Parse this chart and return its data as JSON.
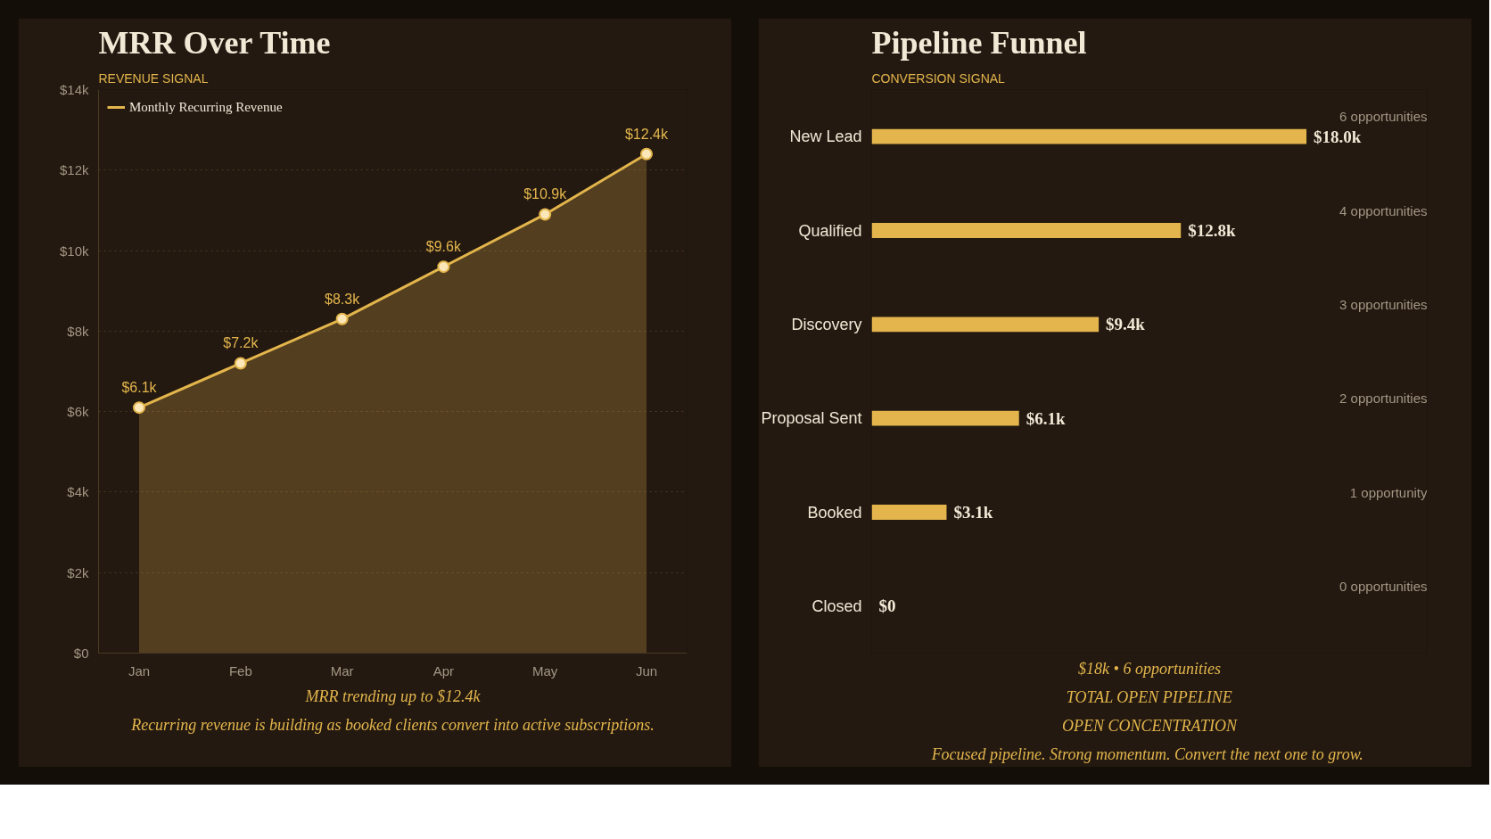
{
  "chart_data": [
    {
      "type": "area",
      "subtitle": "REVENUE SIGNAL",
      "title": "MRR Over Time",
      "categories": [
        "Jan",
        "Feb",
        "Mar",
        "Apr",
        "May",
        "Jun"
      ],
      "series": [
        {
          "name": "Monthly Recurring Revenue",
          "color": "#e3b54c",
          "values": [
            6100,
            7200,
            8300,
            9600,
            10900,
            12400
          ],
          "value_labels": [
            "$6.1k",
            "$7.2k",
            "$8.3k",
            "$9.6k",
            "$10.9k",
            "$12.4k"
          ]
        }
      ],
      "ylim": [
        0,
        14000
      ],
      "yticks": [
        {
          "value": 0,
          "label": "$0"
        },
        {
          "value": 2000,
          "label": "$2k"
        },
        {
          "value": 4000,
          "label": "$4k"
        },
        {
          "value": 6000,
          "label": "$6k"
        },
        {
          "value": 8000,
          "label": "$8k"
        },
        {
          "value": 10000,
          "label": "$10k"
        },
        {
          "value": 12000,
          "label": "$12k"
        },
        {
          "value": 14000,
          "label": "$14k"
        }
      ],
      "grid": "y",
      "legend": "top left",
      "marker": "circle",
      "line_style": "solid",
      "annotations": [
        "MRR trending up to $12.4k",
        "Recurring revenue is building as booked clients convert into active subscriptions."
      ]
    },
    {
      "type": "bar",
      "orientation": "horizontal",
      "subtitle": "CONVERSION SIGNAL",
      "title": "Pipeline Funnel",
      "categories": [
        "New Lead",
        "Qualified",
        "Discovery",
        "Proposal Sent",
        "Booked",
        "Closed"
      ],
      "values": [
        18000,
        12800,
        9400,
        6100,
        3100,
        0
      ],
      "value_labels": [
        "$18.0k",
        "$12.8k",
        "$9.4k",
        "$6.1k",
        "$3.1k",
        "$0"
      ],
      "color": "#e3b54c",
      "xlim": [
        0,
        23000
      ],
      "tick_labels": "y",
      "annotations": [
        "6 opportunities",
        "4 opportunities",
        "3 opportunities",
        "2 opportunities",
        "1 opportunity",
        "0 opportunities",
        "$18k • 6 opportunities",
        "TOTAL OPEN PIPELINE",
        "OPEN CONCENTRATION",
        "Focused pipeline. Strong momentum.  Convert the next one to grow."
      ]
    }
  ]
}
